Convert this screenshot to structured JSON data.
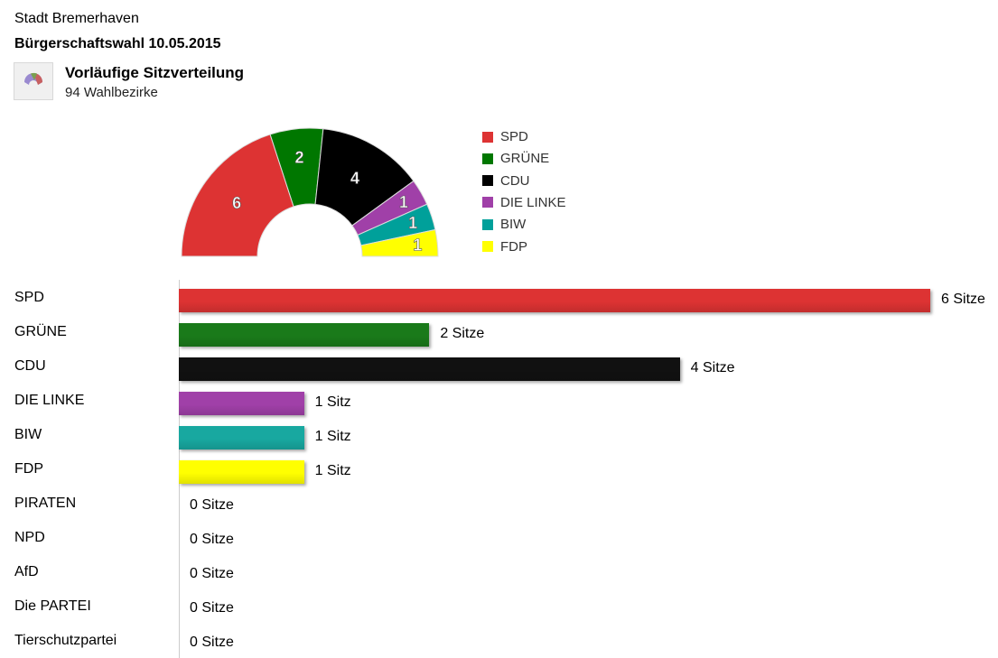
{
  "header": {
    "city": "Stadt Bremerhaven",
    "title": "Bürgerschaftswahl 10.05.2015",
    "subtitle": "Vorläufige Sitzverteilung",
    "districts": "94 Wahlbezirke"
  },
  "chart_data": [
    {
      "type": "pie",
      "variant": "semicircle-parliament",
      "legend_position": "right",
      "series": [
        {
          "name": "SPD",
          "value": 6,
          "color": "#dd3333"
        },
        {
          "name": "GRÜNE",
          "value": 2,
          "color": "#007700"
        },
        {
          "name": "CDU",
          "value": 4,
          "color": "#000000"
        },
        {
          "name": "DIE LINKE",
          "value": 1,
          "color": "#a040a8"
        },
        {
          "name": "BIW",
          "value": 1,
          "color": "#00a09a"
        },
        {
          "name": "FDP",
          "value": 1,
          "color": "#ffff00"
        }
      ]
    },
    {
      "type": "bar",
      "orientation": "horizontal",
      "grid": false,
      "categories": [
        "SPD",
        "GRÜNE",
        "CDU",
        "DIE LINKE",
        "BIW",
        "FDP",
        "PIRATEN",
        "NPD",
        "AfD",
        "Die PARTEI",
        "Tierschutzpartei"
      ],
      "values": [
        6,
        2,
        4,
        1,
        1,
        1,
        0,
        0,
        0,
        0,
        0
      ],
      "labels": [
        "6 Sitze",
        "2 Sitze",
        "4 Sitze",
        "1 Sitz",
        "1 Sitz",
        "1 Sitz",
        "0 Sitze",
        "0 Sitze",
        "0 Sitze",
        "0 Sitze",
        "0 Sitze"
      ],
      "colors": [
        "#dd3333",
        "#1a7a1a",
        "#111111",
        "#a040a8",
        "#18a8a0",
        "#ffff00",
        "",
        "",
        "",
        "",
        ""
      ],
      "xlim": [
        0,
        6
      ]
    }
  ]
}
